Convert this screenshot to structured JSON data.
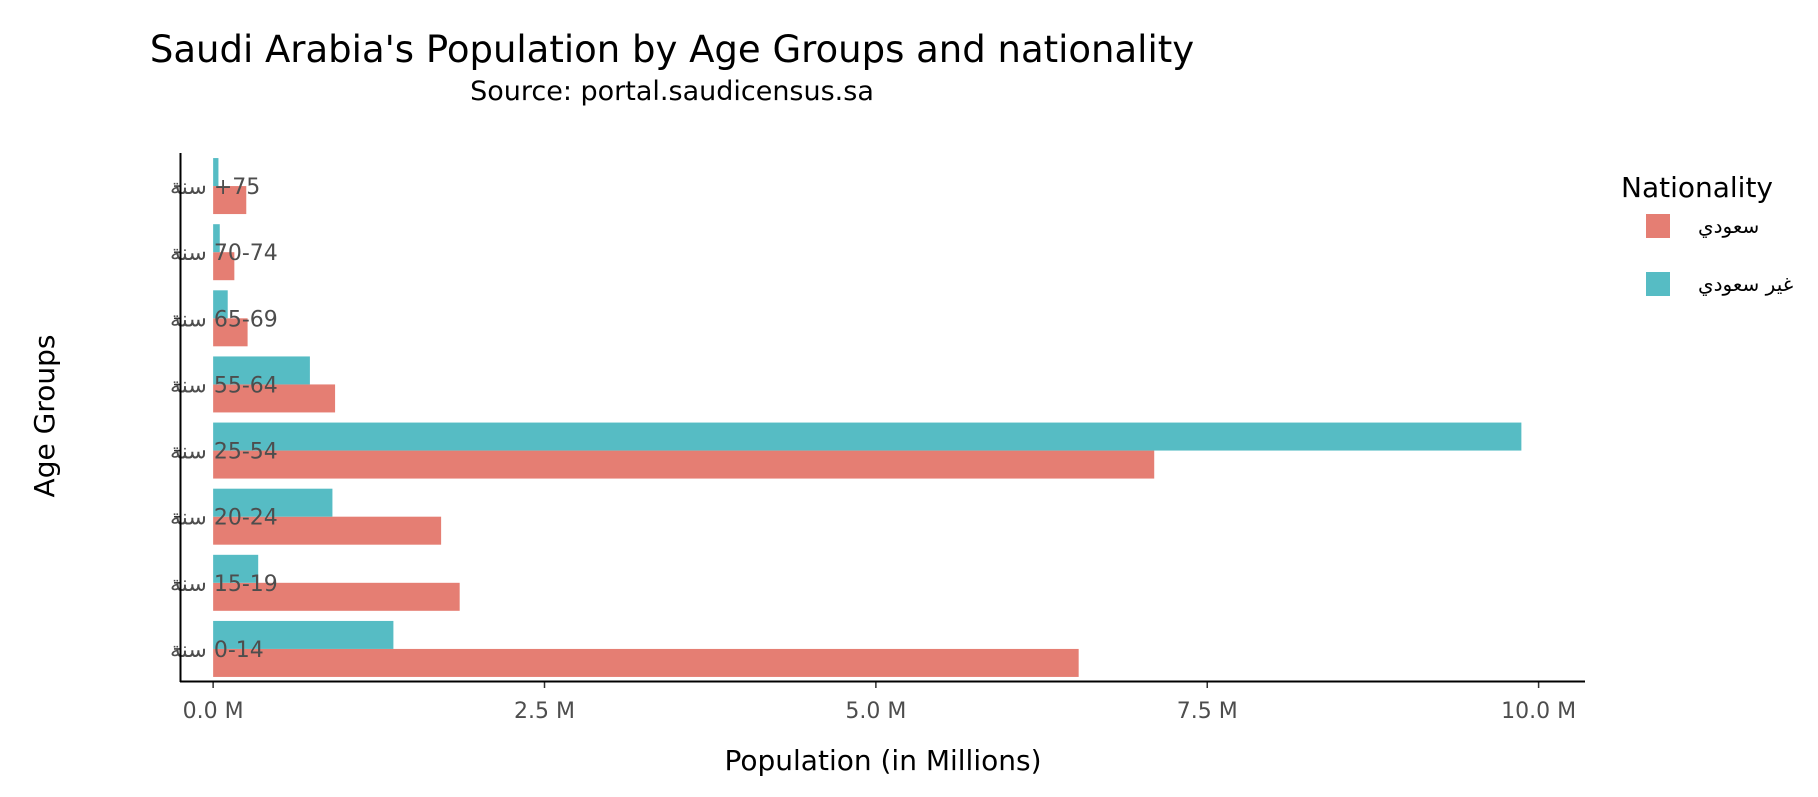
{
  "colors": {
    "saudi": "#E57E73",
    "non_saudi": "#56BCC4",
    "axis": "#000000",
    "tick_text": "#4d4d4d"
  },
  "chart_data": {
    "type": "bar",
    "orientation": "horizontal",
    "title": "Saudi Arabia's Population by Age Groups and nationality",
    "subtitle": "Source: portal.saudicensus.sa",
    "xlabel": "Population (in Millions)",
    "ylabel": "Age Groups",
    "xlim": [
      -0.25,
      10.35
    ],
    "x_ticks": [
      0,
      2.5,
      5,
      7.5,
      10
    ],
    "x_tick_labels": [
      "0.0 M",
      "2.5 M",
      "5.0 M",
      "7.5 M",
      "10.0 M"
    ],
    "categories": [
      "0-14 سنة",
      "15-19 سنة",
      "20-24 سنة",
      "25-54 سنة",
      "55-64 سنة",
      "65-69 سنة",
      "70-74 سنة",
      "75+ سنة"
    ],
    "legend_title": "Nationality",
    "legend_position": "right",
    "grid": false,
    "series": [
      {
        "name": "سعودي",
        "color_key": "saudi",
        "values": [
          6.53,
          1.86,
          1.72,
          7.1,
          0.92,
          0.26,
          0.16,
          0.25
        ]
      },
      {
        "name": "غير سعودي",
        "color_key": "non_saudi",
        "values": [
          1.36,
          0.34,
          0.9,
          9.87,
          0.73,
          0.11,
          0.05,
          0.04
        ]
      }
    ]
  }
}
